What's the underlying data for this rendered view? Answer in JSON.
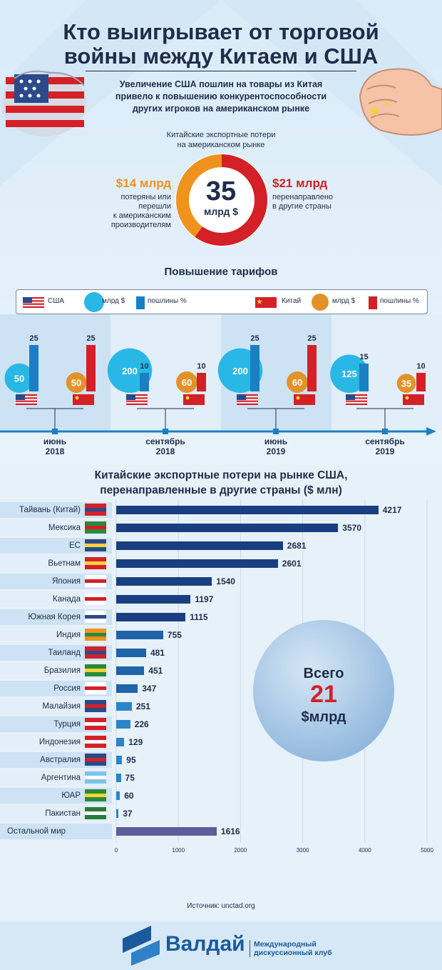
{
  "title": "Кто выигрывает от торговой войны между Китаем и США",
  "title_lines": [
    "Кто выигрывает от торговой",
    "войны между Китаем и США"
  ],
  "subtitle_lines": [
    "Увеличение США пошлин на товары из Китая",
    "привело к повышению конкурентоспособности",
    "других игроков на американском рынке"
  ],
  "donut": {
    "caption_lines": [
      "Китайские экспортные потери",
      "на американском рынке"
    ],
    "total": "35",
    "unit": "млрд $",
    "left_amount": "$14 млрд",
    "left_value": 14,
    "left_desc_lines": [
      "потеряны или",
      "перешли",
      "к американским",
      "производителям"
    ],
    "right_amount": "$21 млрд",
    "right_value": 21,
    "right_desc_lines": [
      "перенаправлено",
      "в другие страны"
    ],
    "colors": {
      "left": "#f0921e",
      "right": "#d42027"
    }
  },
  "tariffs": {
    "title": "Повышение тарифов",
    "legend": {
      "usa": "США",
      "usa_amount": "млрд $",
      "usa_duty": "пошлины %",
      "china": "Китай",
      "china_amount": "млрд $",
      "china_duty": "пошлины %"
    },
    "colors": {
      "usa_circle": "#29b8e5",
      "usa_bar": "#1b7fc4",
      "china_circle": "#e3922a",
      "china_bar": "#d42027"
    },
    "periods": [
      {
        "month": "июнь",
        "year": "2018",
        "usa_amount": 50,
        "usa_duty": 25,
        "china_amount": 50,
        "china_duty": 25
      },
      {
        "month": "сентябрь",
        "year": "2018",
        "usa_amount": 200,
        "usa_duty": 10,
        "china_amount": 60,
        "china_duty": 10
      },
      {
        "month": "июнь",
        "year": "2019",
        "usa_amount": 200,
        "usa_duty": 25,
        "china_amount": 60,
        "china_duty": 25
      },
      {
        "month": "сентябрь",
        "year": "2019",
        "usa_amount": 125,
        "usa_duty": 15,
        "china_amount": 35,
        "china_duty": 10
      }
    ]
  },
  "chart_data": {
    "type": "bar",
    "orientation": "horizontal",
    "title_lines": [
      "Китайские экспортные потери на рынке США,",
      "перенаправленные в другие страны ($ млн)"
    ],
    "categories": [
      "Тайвань (Китай)",
      "Мексика",
      "ЕС",
      "Вьетнам",
      "Япония",
      "Канада",
      "Южная Корея",
      "Индия",
      "Таиланд",
      "Бразилия",
      "Россия",
      "Малайзия",
      "Турция",
      "Индонезия",
      "Австралия",
      "Аргентина",
      "ЮАР",
      "Пакистан",
      "Остальной мир"
    ],
    "values": [
      4217,
      3570,
      2681,
      2601,
      1540,
      1197,
      1115,
      755,
      481,
      451,
      347,
      251,
      226,
      129,
      95,
      75,
      60,
      37,
      1616
    ],
    "xlim": [
      0,
      5000
    ],
    "xticks": [
      0,
      1000,
      2000,
      3000,
      4000,
      5000
    ],
    "grid": true,
    "total_lines": [
      "Всего",
      "21",
      "$млрд"
    ]
  },
  "source": "Источник: unctad.org",
  "footer": {
    "brand": "Валдай",
    "club_lines": [
      "Международный",
      "дискуссионный клуб"
    ]
  }
}
